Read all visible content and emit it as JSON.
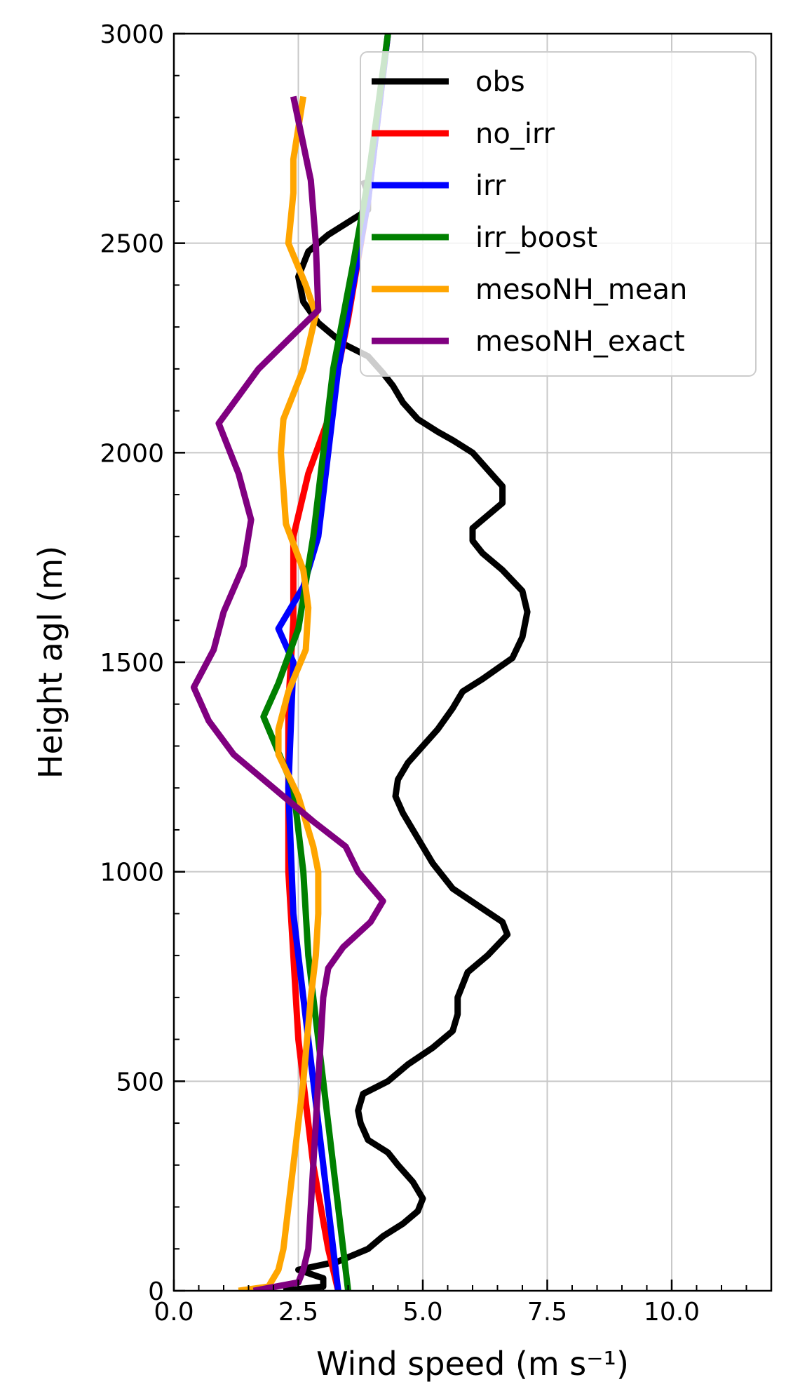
{
  "chart_data": {
    "type": "line",
    "xlabel": "Wind speed (m s⁻¹)",
    "ylabel": "Height agl (m)",
    "xlim": [
      0,
      12
    ],
    "ylim": [
      0,
      3000
    ],
    "x_ticks": [
      "0.0",
      "2.5",
      "5.0",
      "7.5",
      "10.0"
    ],
    "y_ticks": [
      "0",
      "500",
      "1000",
      "1500",
      "2000",
      "2500",
      "3000"
    ],
    "grid": true,
    "legend_position": "top-right",
    "series": [
      {
        "name": "obs",
        "color": "#000000",
        "points": [
          [
            2.2,
            0
          ],
          [
            3.0,
            10
          ],
          [
            3.0,
            30
          ],
          [
            2.5,
            50
          ],
          [
            3.3,
            70
          ],
          [
            3.9,
            100
          ],
          [
            4.2,
            130
          ],
          [
            4.6,
            160
          ],
          [
            4.9,
            190
          ],
          [
            5.0,
            220
          ],
          [
            4.8,
            260
          ],
          [
            4.5,
            300
          ],
          [
            4.3,
            330
          ],
          [
            3.9,
            360
          ],
          [
            3.75,
            400
          ],
          [
            3.7,
            430
          ],
          [
            3.8,
            470
          ],
          [
            4.3,
            500
          ],
          [
            4.7,
            540
          ],
          [
            5.2,
            580
          ],
          [
            5.6,
            620
          ],
          [
            5.7,
            660
          ],
          [
            5.7,
            700
          ],
          [
            5.9,
            760
          ],
          [
            6.3,
            800
          ],
          [
            6.7,
            850
          ],
          [
            6.6,
            880
          ],
          [
            6.1,
            920
          ],
          [
            5.6,
            960
          ],
          [
            5.4,
            990
          ],
          [
            5.2,
            1020
          ],
          [
            5.0,
            1060
          ],
          [
            4.8,
            1100
          ],
          [
            4.6,
            1140
          ],
          [
            4.45,
            1180
          ],
          [
            4.5,
            1220
          ],
          [
            4.7,
            1260
          ],
          [
            5.0,
            1300
          ],
          [
            5.3,
            1340
          ],
          [
            5.6,
            1390
          ],
          [
            5.8,
            1430
          ],
          [
            6.2,
            1460
          ],
          [
            6.8,
            1510
          ],
          [
            7.0,
            1560
          ],
          [
            7.1,
            1620
          ],
          [
            7.0,
            1670
          ],
          [
            6.6,
            1720
          ],
          [
            6.2,
            1760
          ],
          [
            6.0,
            1790
          ],
          [
            6.0,
            1820
          ],
          [
            6.3,
            1850
          ],
          [
            6.6,
            1880
          ],
          [
            6.6,
            1920
          ],
          [
            6.3,
            1960
          ],
          [
            6.0,
            2000
          ],
          [
            5.6,
            2030
          ],
          [
            5.3,
            2050
          ],
          [
            4.9,
            2080
          ],
          [
            4.6,
            2120
          ],
          [
            4.4,
            2160
          ],
          [
            4.2,
            2190
          ],
          [
            3.9,
            2230
          ],
          [
            3.4,
            2260
          ],
          [
            2.9,
            2310
          ],
          [
            2.6,
            2360
          ],
          [
            2.5,
            2420
          ],
          [
            2.7,
            2480
          ],
          [
            3.1,
            2520
          ],
          [
            3.5,
            2550
          ],
          [
            3.9,
            2580
          ],
          [
            3.9,
            2620
          ],
          [
            3.8,
            2650
          ]
        ]
      },
      {
        "name": "no_irr",
        "color": "#ff0000",
        "points": [
          [
            3.3,
            0
          ],
          [
            3.1,
            100
          ],
          [
            2.8,
            300
          ],
          [
            2.5,
            600
          ],
          [
            2.3,
            1000
          ],
          [
            2.3,
            1400
          ],
          [
            2.4,
            1600
          ],
          [
            2.4,
            1800
          ],
          [
            2.7,
            1950
          ],
          [
            3.1,
            2080
          ],
          [
            3.5,
            2320
          ],
          [
            3.9,
            2600
          ],
          [
            4.3,
            3000
          ]
        ]
      },
      {
        "name": "irr",
        "color": "#0000ff",
        "points": [
          [
            3.3,
            0
          ],
          [
            3.1,
            200
          ],
          [
            2.9,
            400
          ],
          [
            2.7,
            600
          ],
          [
            2.4,
            900
          ],
          [
            2.3,
            1200
          ],
          [
            2.4,
            1500
          ],
          [
            2.1,
            1580
          ],
          [
            2.3,
            1620
          ],
          [
            2.6,
            1680
          ],
          [
            2.9,
            1800
          ],
          [
            3.1,
            2000
          ],
          [
            3.3,
            2200
          ],
          [
            3.6,
            2400
          ],
          [
            3.9,
            2600
          ],
          [
            4.3,
            3000
          ]
        ]
      },
      {
        "name": "irr_boost",
        "color": "#008000",
        "points": [
          [
            3.5,
            0
          ],
          [
            3.3,
            200
          ],
          [
            3.1,
            400
          ],
          [
            2.9,
            600
          ],
          [
            2.7,
            800
          ],
          [
            2.6,
            1000
          ],
          [
            2.4,
            1200
          ],
          [
            1.8,
            1370
          ],
          [
            2.1,
            1450
          ],
          [
            2.5,
            1580
          ],
          [
            2.8,
            1800
          ],
          [
            3.0,
            2000
          ],
          [
            3.2,
            2200
          ],
          [
            3.6,
            2450
          ],
          [
            3.9,
            2650
          ],
          [
            4.3,
            3000
          ]
        ]
      },
      {
        "name": "mesoNH_mean",
        "color": "#ffa500",
        "points": [
          [
            1.3,
            0
          ],
          [
            1.9,
            10
          ],
          [
            2.1,
            50
          ],
          [
            2.2,
            100
          ],
          [
            2.3,
            200
          ],
          [
            2.4,
            300
          ],
          [
            2.5,
            400
          ],
          [
            2.6,
            500
          ],
          [
            2.75,
            700
          ],
          [
            2.85,
            800
          ],
          [
            2.9,
            900
          ],
          [
            2.9,
            1000
          ],
          [
            2.8,
            1060
          ],
          [
            2.5,
            1180
          ],
          [
            2.1,
            1280
          ],
          [
            2.1,
            1340
          ],
          [
            2.3,
            1430
          ],
          [
            2.65,
            1530
          ],
          [
            2.7,
            1630
          ],
          [
            2.6,
            1720
          ],
          [
            2.25,
            1830
          ],
          [
            2.15,
            2000
          ],
          [
            2.2,
            2080
          ],
          [
            2.6,
            2200
          ],
          [
            2.85,
            2330
          ],
          [
            2.65,
            2400
          ],
          [
            2.3,
            2500
          ],
          [
            2.4,
            2620
          ],
          [
            2.4,
            2700
          ],
          [
            2.6,
            2850
          ]
        ]
      },
      {
        "name": "mesoNH_exact",
        "color": "#800080",
        "points": [
          [
            1.6,
            0
          ],
          [
            2.5,
            20
          ],
          [
            2.6,
            50
          ],
          [
            2.7,
            100
          ],
          [
            2.8,
            300
          ],
          [
            2.9,
            500
          ],
          [
            3.0,
            700
          ],
          [
            3.1,
            770
          ],
          [
            3.4,
            820
          ],
          [
            3.95,
            880
          ],
          [
            4.2,
            930
          ],
          [
            3.7,
            1000
          ],
          [
            3.45,
            1060
          ],
          [
            2.8,
            1120
          ],
          [
            2.1,
            1190
          ],
          [
            1.2,
            1280
          ],
          [
            0.7,
            1360
          ],
          [
            0.4,
            1440
          ],
          [
            0.8,
            1530
          ],
          [
            1.0,
            1620
          ],
          [
            1.4,
            1730
          ],
          [
            1.55,
            1840
          ],
          [
            1.3,
            1950
          ],
          [
            0.9,
            2070
          ],
          [
            1.7,
            2200
          ],
          [
            2.9,
            2340
          ],
          [
            2.85,
            2500
          ],
          [
            2.75,
            2650
          ],
          [
            2.4,
            2850
          ]
        ]
      }
    ]
  }
}
